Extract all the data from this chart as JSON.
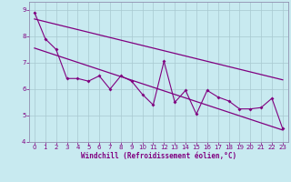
{
  "xlabel": "Windchill (Refroidissement éolien,°C)",
  "background_color": "#c8eaf0",
  "line_color": "#800080",
  "grid_color": "#a8c8d0",
  "spine_color": "#9090b0",
  "xlim": [
    -0.5,
    23.5
  ],
  "ylim": [
    4,
    9.3
  ],
  "yticks": [
    4,
    5,
    6,
    7,
    8,
    9
  ],
  "xticks": [
    0,
    1,
    2,
    3,
    4,
    5,
    6,
    7,
    8,
    9,
    10,
    11,
    12,
    13,
    14,
    15,
    16,
    17,
    18,
    19,
    20,
    21,
    22,
    23
  ],
  "data_line": [
    8.9,
    7.9,
    7.5,
    6.4,
    6.4,
    6.3,
    6.5,
    6.0,
    6.5,
    6.3,
    5.8,
    5.4,
    7.05,
    5.5,
    5.95,
    5.05,
    5.95,
    5.7,
    5.55,
    5.25,
    5.25,
    5.3,
    5.65,
    4.5
  ],
  "trend1_start": 8.65,
  "trend1_end": 6.35,
  "trend2_start": 7.55,
  "trend2_end": 4.45,
  "tick_fontsize": 5.0,
  "xlabel_fontsize": 5.5
}
